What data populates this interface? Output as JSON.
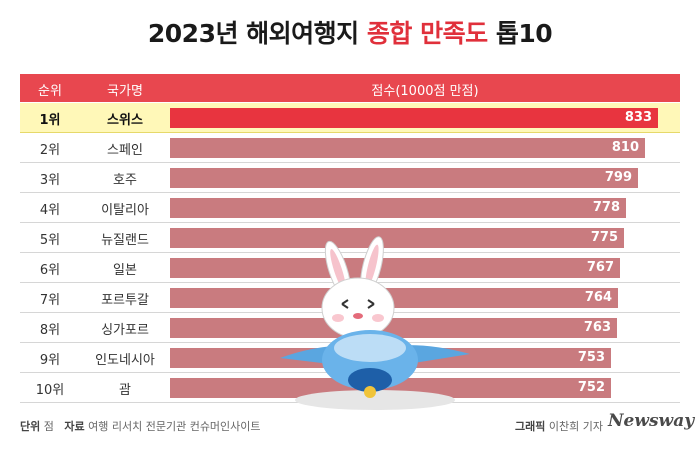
{
  "title": {
    "prefix": "2023년 해외여행지 ",
    "highlight": "종합 만족도",
    "suffix": " 톱10"
  },
  "header": {
    "rank": "순위",
    "country": "국가명",
    "score": "점수(1000점 만점)"
  },
  "chart_data": {
    "type": "bar",
    "orientation": "horizontal",
    "title": "2023년 해외여행지 종합 만족도 톱10",
    "ylabel": "점수(1000점 만점)",
    "max": 1000,
    "rows": [
      {
        "rank": "1위",
        "country": "스위스",
        "value": 833
      },
      {
        "rank": "2위",
        "country": "스페인",
        "value": 810
      },
      {
        "rank": "3위",
        "country": "호주",
        "value": 799
      },
      {
        "rank": "4위",
        "country": "이탈리아",
        "value": 778
      },
      {
        "rank": "5위",
        "country": "뉴질랜드",
        "value": 775
      },
      {
        "rank": "6위",
        "country": "일본",
        "value": 767
      },
      {
        "rank": "7위",
        "country": "포르투갈",
        "value": 764
      },
      {
        "rank": "8위",
        "country": "싱가포르",
        "value": 763
      },
      {
        "rank": "9위",
        "country": "인도네시아",
        "value": 753
      },
      {
        "rank": "10위",
        "country": "괌",
        "value": 752
      }
    ]
  },
  "colors": {
    "top": "#e8343f",
    "other": "#c97b7f",
    "highlight_row": "#fff8b8"
  },
  "footer": {
    "unit_label": "단위",
    "unit": "점",
    "source_label": "자료",
    "source": "여행 리서치 전문기관 컨슈머인사이트",
    "credit_label": "그래픽",
    "credit": "이찬희 기자",
    "logo": "Newsway"
  }
}
